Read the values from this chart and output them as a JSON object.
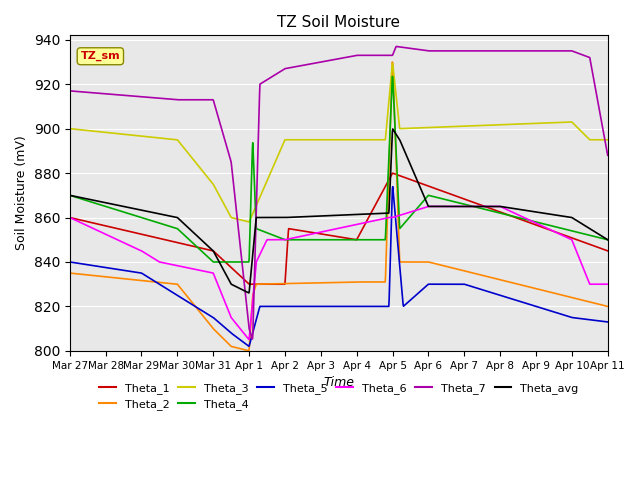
{
  "title": "TZ Soil Moisture",
  "xlabel": "Time",
  "ylabel": "Soil Moisture (mV)",
  "ylim": [
    800,
    942
  ],
  "xlim": [
    0,
    15
  ],
  "xtick_labels": [
    "Mar 27",
    "Mar 28",
    "Mar 29",
    "Mar 30",
    "Mar 31",
    "Apr 1",
    "Apr 2",
    "Apr 3",
    "Apr 4",
    "Apr 5",
    "Apr 6",
    "Apr 7",
    "Apr 8",
    "Apr 9",
    "Apr 10",
    "Apr 11"
  ],
  "xtick_positions": [
    0,
    1,
    2,
    3,
    4,
    5,
    6,
    7,
    8,
    9,
    10,
    11,
    12,
    13,
    14,
    15
  ],
  "tag_label": "TZ_sm",
  "tag_color": "#ffff99",
  "tag_text_color": "#cc0000",
  "background_color": "#e8e8e8",
  "figure_color": "#ffffff",
  "line_colors": {
    "Theta_1": "#cc0000",
    "Theta_2": "#ff8800",
    "Theta_3": "#cccc00",
    "Theta_4": "#00aa00",
    "Theta_5": "#0000cc",
    "Theta_6": "#ff00ff",
    "Theta_7": "#aa00aa",
    "Theta_avg": "#000000"
  },
  "legend_entries": [
    "Theta_1",
    "Theta_2",
    "Theta_3",
    "Theta_4",
    "Theta_5",
    "Theta_6",
    "Theta_7",
    "Theta_avg"
  ]
}
